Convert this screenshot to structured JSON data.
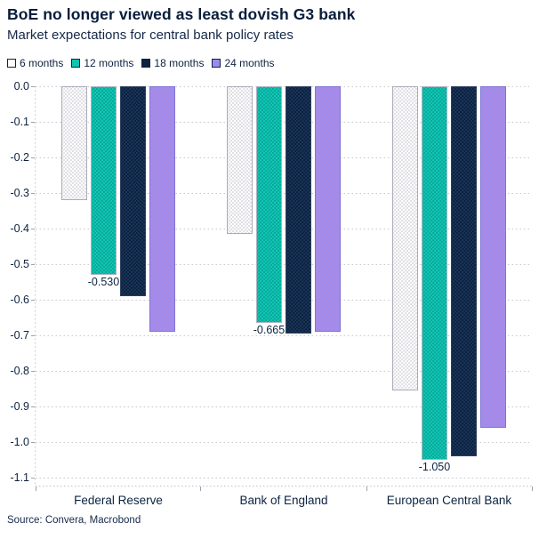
{
  "header": {
    "title": "BoE no longer viewed as least dovish G3 bank",
    "subtitle": "Market expectations for central bank policy rates"
  },
  "legend": [
    {
      "label": "6 months",
      "color": "#ffffff"
    },
    {
      "label": "12 months",
      "color": "#0fc6b2"
    },
    {
      "label": "18 months",
      "color": "#0d2240"
    },
    {
      "label": "24 months",
      "color": "#9c8bef"
    }
  ],
  "chart_data": {
    "type": "bar",
    "title": "BoE no longer viewed as least dovish G3 bank",
    "subtitle": "Market expectations for central bank policy rates",
    "categories": [
      "Federal Reserve",
      "Bank of England",
      "European Central Bank"
    ],
    "series": [
      {
        "name": "6 months",
        "color": "#ffffff",
        "values": [
          -0.32,
          -0.415,
          -0.855
        ]
      },
      {
        "name": "12 months",
        "color": "#0fc6b2",
        "values": [
          -0.53,
          -0.665,
          -1.05
        ]
      },
      {
        "name": "18 months",
        "color": "#0d2240",
        "values": [
          -0.59,
          -0.695,
          -1.04
        ]
      },
      {
        "name": "24 months",
        "color": "#9c8bef",
        "values": [
          -0.69,
          -0.69,
          -0.96
        ]
      }
    ],
    "data_labels": [
      {
        "series": 1,
        "category": 0,
        "text": "-0.530"
      },
      {
        "series": 1,
        "category": 1,
        "text": "-0.665"
      },
      {
        "series": 1,
        "category": 2,
        "text": "-1.050"
      }
    ],
    "ylim": [
      -1.1,
      0.0
    ],
    "ytick_step": 0.1,
    "ytick_labels": [
      "0.0",
      "-0.1",
      "-0.2",
      "-0.3",
      "-0.4",
      "-0.5",
      "-0.6",
      "-0.7",
      "-0.8",
      "-0.9",
      "-1.0",
      "-1.1"
    ],
    "grid": "dotted-horizontal",
    "legend_position": "top-left"
  },
  "source": "Source: Convera, Macrobond"
}
